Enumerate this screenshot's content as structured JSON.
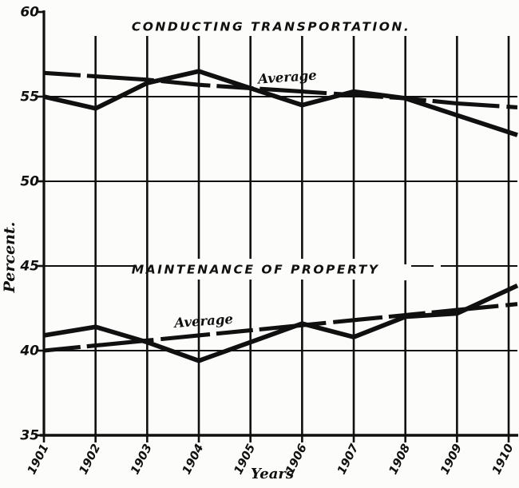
{
  "figure": {
    "title_top": "CONDUCTING TRANSPORTATION.",
    "title_bottom": "MAINTENANCE OF PROPERTY",
    "average_label": "Average",
    "ylabel": "Percent.",
    "xlabel": "Years",
    "background": "#fcfcfa",
    "ink": "#101010"
  },
  "chart_data": {
    "type": "line",
    "title": "Conducting Transportation and Maintenance of Property, percent by year",
    "xlabel": "Years",
    "ylabel": "Percent.",
    "x": [
      1901,
      1902,
      1903,
      1904,
      1905,
      1906,
      1907,
      1908,
      1909,
      1910
    ],
    "x_tick_labels": [
      "1901",
      "1902",
      "1903",
      "1904",
      "1905",
      "1906",
      "1907",
      "1908",
      "1909",
      "1910"
    ],
    "y_ticks": [
      35,
      40,
      45,
      50,
      55,
      60
    ],
    "y_tick_labels": [
      "35",
      "40",
      "45",
      "50",
      "55",
      "60"
    ],
    "ylim": [
      35,
      60
    ],
    "grid": true,
    "legend_position": "inline-labels",
    "series": [
      {
        "name": "Conducting Transportation",
        "style": "solid",
        "values": [
          55.0,
          54.3,
          55.8,
          56.5,
          55.5,
          54.5,
          55.3,
          54.9,
          53.9,
          52.9
        ]
      },
      {
        "name": "Conducting Transportation Average",
        "style": "dashed",
        "label": "Average",
        "values": [
          56.4,
          56.2,
          56.0,
          55.7,
          55.5,
          55.3,
          55.1,
          54.9,
          54.6,
          54.4
        ]
      },
      {
        "name": "Maintenance of Property",
        "style": "solid",
        "values": [
          40.9,
          41.4,
          40.5,
          39.4,
          40.5,
          41.6,
          40.8,
          42.0,
          42.2,
          43.6
        ]
      },
      {
        "name": "Maintenance of Property Average",
        "style": "dashed",
        "label": "Average",
        "values": [
          40.0,
          40.3,
          40.6,
          40.9,
          41.2,
          41.5,
          41.8,
          42.1,
          42.4,
          42.7
        ]
      }
    ],
    "annotations": [
      {
        "kind": "title",
        "text": "CONDUCTING TRANSPORTATION.",
        "x": 1905.4,
        "y": 59.15
      },
      {
        "kind": "title",
        "text": "MAINTENANCE OF PROPERTY",
        "x": 1905.1,
        "y": 44.8
      },
      {
        "kind": "average",
        "text": "Average",
        "x": 1905.72,
        "y": 56.15,
        "series": "Conducting Transportation Average"
      },
      {
        "kind": "average",
        "text": "Average",
        "x": 1904.1,
        "y": 41.75,
        "series": "Maintenance of Property Average"
      }
    ]
  }
}
